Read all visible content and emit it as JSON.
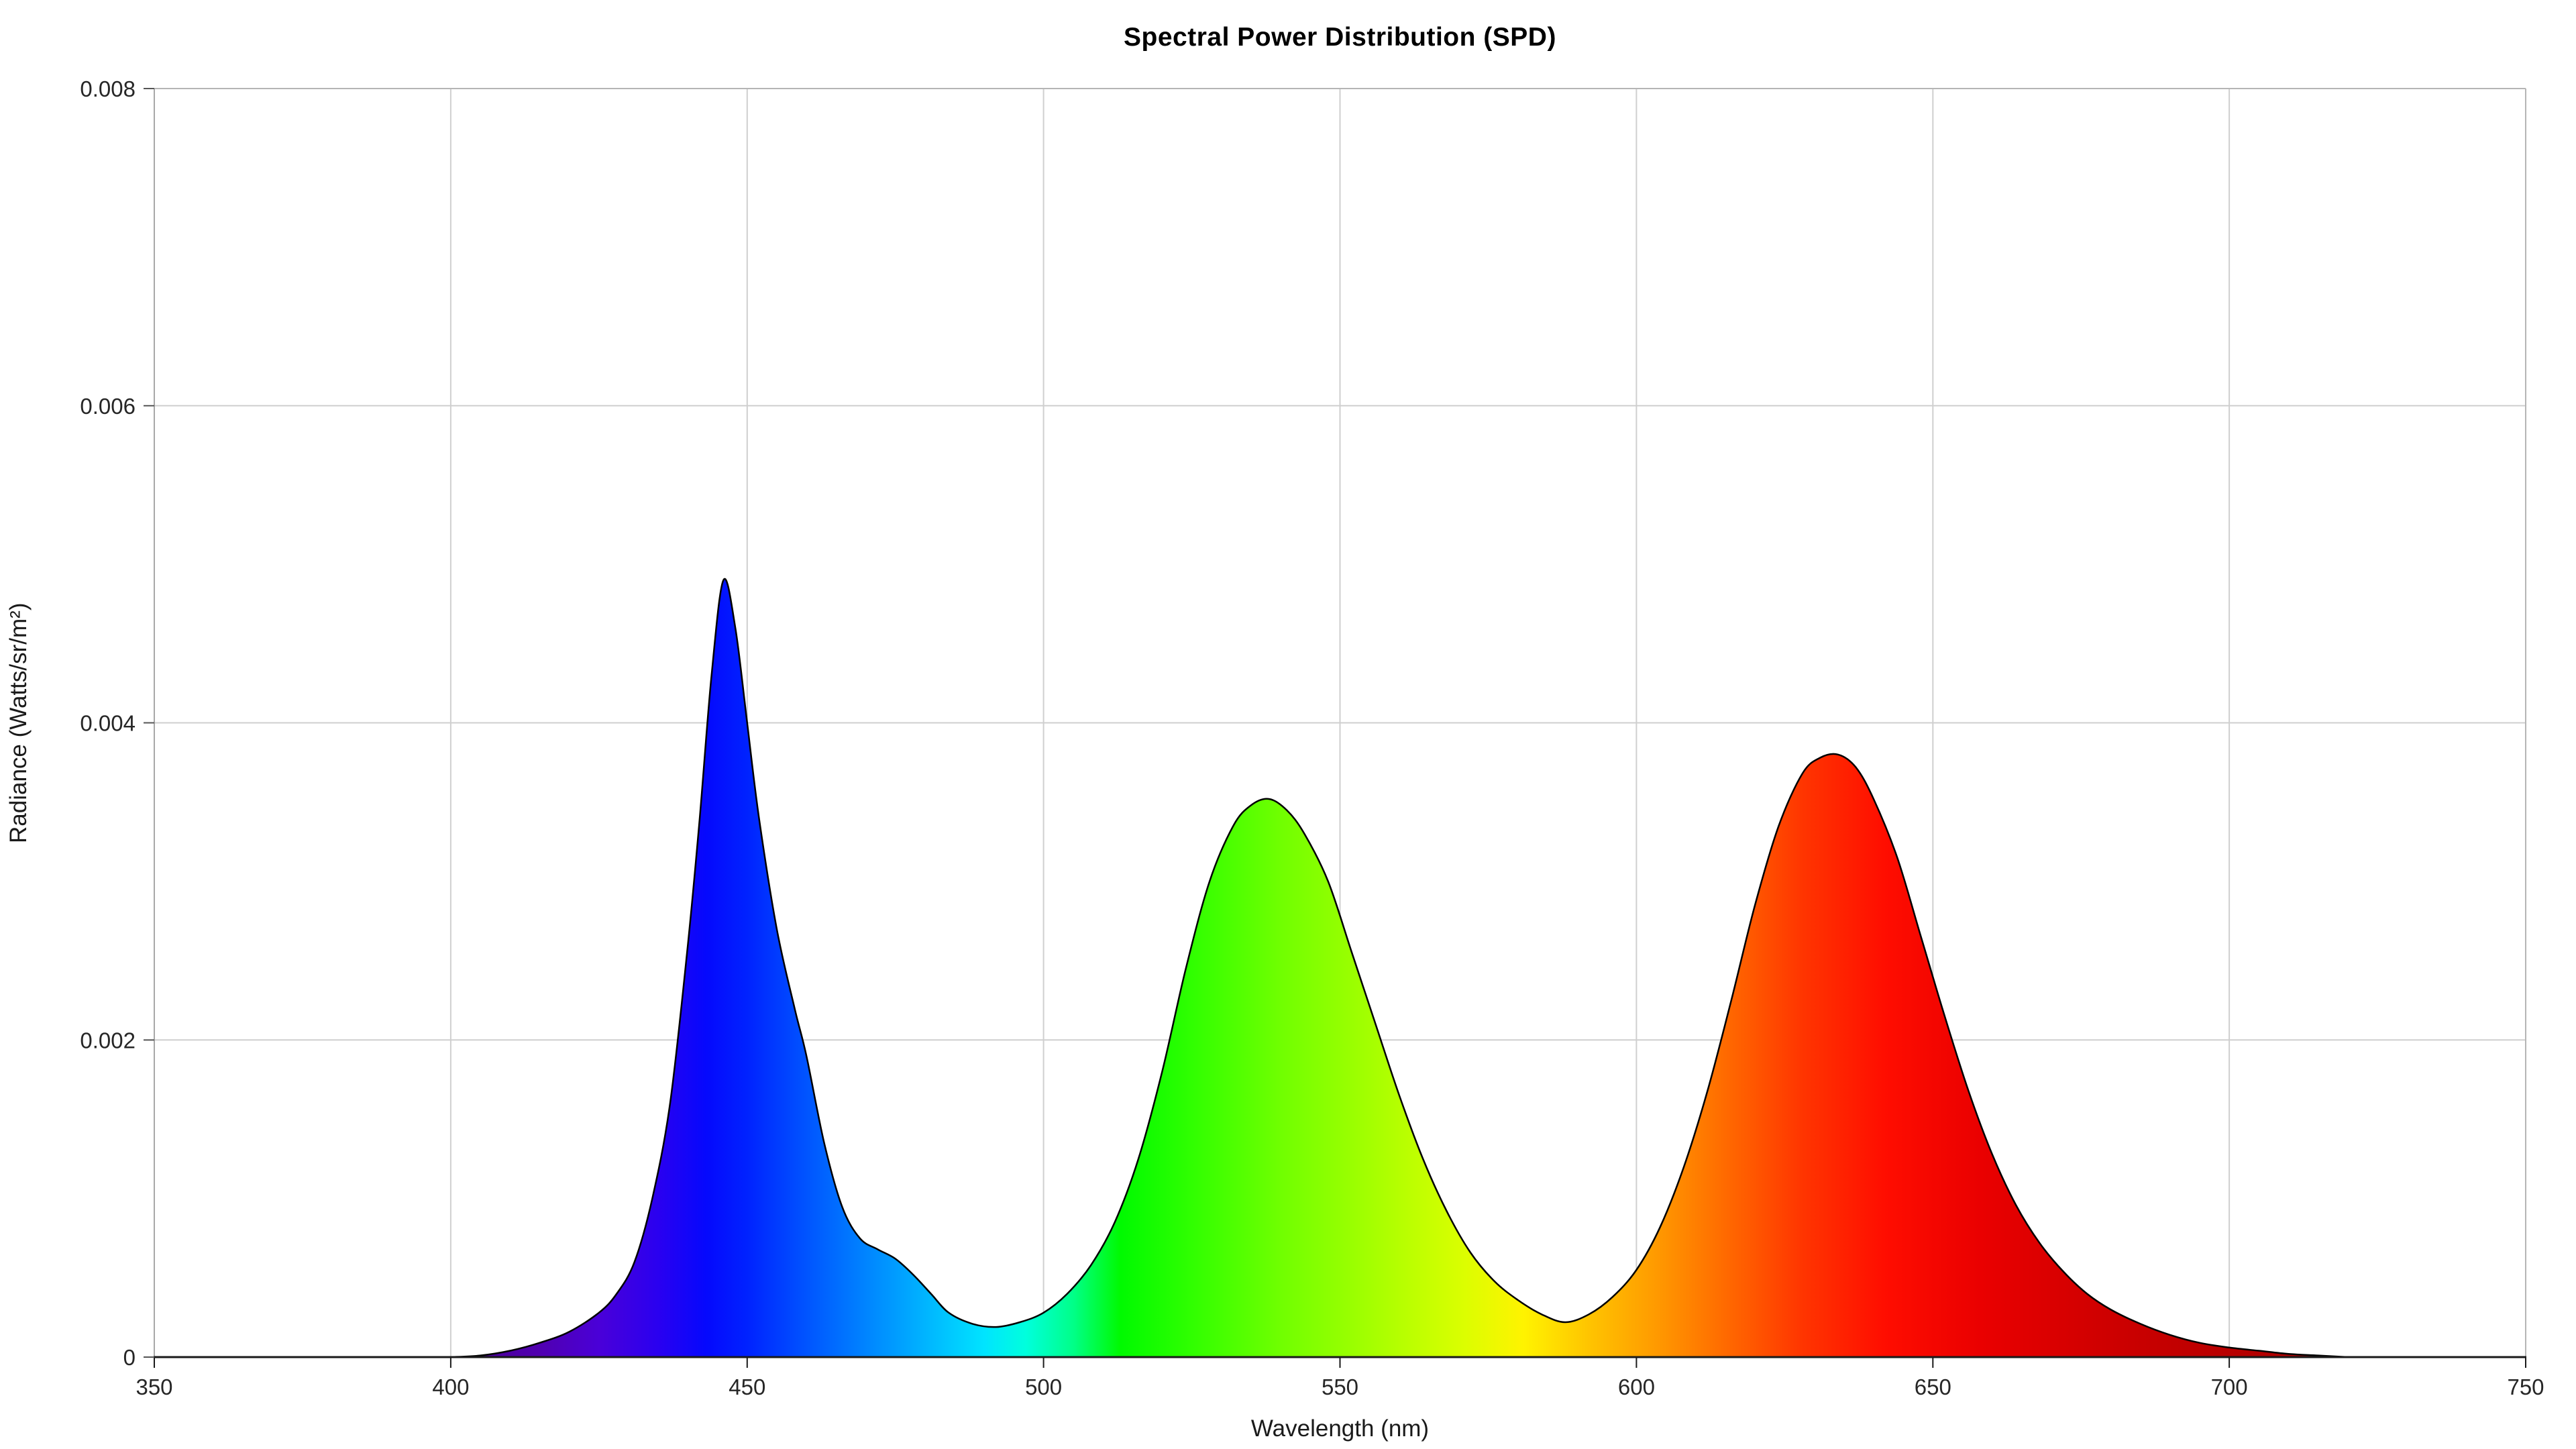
{
  "chart_data": {
    "type": "area",
    "title": "Spectral Power Distribution (SPD)",
    "xlabel": "Wavelength (nm)",
    "ylabel": "Radiance (Watts/sr/m²)",
    "xlim": [
      350,
      750
    ],
    "ylim": [
      0,
      0.008
    ],
    "xticks": [
      350,
      400,
      450,
      500,
      550,
      600,
      650,
      700,
      750
    ],
    "ytick_values": [
      0,
      0.002,
      0.004,
      0.006,
      0.008
    ],
    "ytick_labels": [
      "0",
      "0.002",
      "0.004",
      "0.006",
      "0.008"
    ],
    "grid": true,
    "legend_position": "none",
    "series_name": "Spectral radiance",
    "points": [
      [
        400,
        0
      ],
      [
        405,
        1e-05
      ],
      [
        410,
        4e-05
      ],
      [
        415,
        9e-05
      ],
      [
        420,
        0.00016
      ],
      [
        425,
        0.00028
      ],
      [
        428,
        0.0004
      ],
      [
        431,
        0.0006
      ],
      [
        434,
        0.001
      ],
      [
        437,
        0.0016
      ],
      [
        440,
        0.0026
      ],
      [
        442,
        0.0034
      ],
      [
        444,
        0.0043
      ],
      [
        446,
        0.0049
      ],
      [
        448,
        0.0046
      ],
      [
        450,
        0.004
      ],
      [
        452,
        0.0034
      ],
      [
        455,
        0.0027
      ],
      [
        458,
        0.0022
      ],
      [
        460,
        0.0019
      ],
      [
        463,
        0.00135
      ],
      [
        466,
        0.00095
      ],
      [
        469,
        0.00075
      ],
      [
        472,
        0.00068
      ],
      [
        475,
        0.00062
      ],
      [
        478,
        0.00052
      ],
      [
        481,
        0.0004
      ],
      [
        484,
        0.00028
      ],
      [
        488,
        0.00021
      ],
      [
        492,
        0.00019
      ],
      [
        496,
        0.00022
      ],
      [
        500,
        0.00028
      ],
      [
        504,
        0.0004
      ],
      [
        508,
        0.00058
      ],
      [
        512,
        0.00085
      ],
      [
        516,
        0.00125
      ],
      [
        520,
        0.0018
      ],
      [
        524,
        0.00245
      ],
      [
        528,
        0.003
      ],
      [
        532,
        0.00335
      ],
      [
        535,
        0.00348
      ],
      [
        538,
        0.00352
      ],
      [
        541,
        0.00345
      ],
      [
        544,
        0.0033
      ],
      [
        548,
        0.003
      ],
      [
        552,
        0.00255
      ],
      [
        556,
        0.0021
      ],
      [
        560,
        0.00165
      ],
      [
        564,
        0.00125
      ],
      [
        568,
        0.00092
      ],
      [
        572,
        0.00066
      ],
      [
        576,
        0.00048
      ],
      [
        580,
        0.00036
      ],
      [
        584,
        0.00027
      ],
      [
        588,
        0.00022
      ],
      [
        592,
        0.00027
      ],
      [
        596,
        0.00038
      ],
      [
        600,
        0.00055
      ],
      [
        604,
        0.00082
      ],
      [
        608,
        0.0012
      ],
      [
        612,
        0.00168
      ],
      [
        616,
        0.00225
      ],
      [
        620,
        0.00285
      ],
      [
        624,
        0.00335
      ],
      [
        628,
        0.00368
      ],
      [
        631,
        0.00378
      ],
      [
        634,
        0.0038
      ],
      [
        637,
        0.00372
      ],
      [
        640,
        0.00352
      ],
      [
        644,
        0.00315
      ],
      [
        648,
        0.00265
      ],
      [
        652,
        0.00215
      ],
      [
        656,
        0.00168
      ],
      [
        660,
        0.00128
      ],
      [
        664,
        0.00096
      ],
      [
        668,
        0.00072
      ],
      [
        672,
        0.00054
      ],
      [
        676,
        0.0004
      ],
      [
        680,
        0.0003
      ],
      [
        685,
        0.00021
      ],
      [
        690,
        0.00014
      ],
      [
        695,
        9e-05
      ],
      [
        700,
        6e-05
      ],
      [
        705,
        4e-05
      ],
      [
        710,
        2e-05
      ],
      [
        715,
        1e-05
      ],
      [
        720,
        0
      ]
    ],
    "gradient_stops": [
      {
        "nm": 400,
        "color": "#4a0090"
      },
      {
        "nm": 415,
        "color": "#5000b0"
      },
      {
        "nm": 425,
        "color": "#4a00d8"
      },
      {
        "nm": 435,
        "color": "#2a00f0"
      },
      {
        "nm": 443,
        "color": "#0508fd"
      },
      {
        "nm": 450,
        "color": "#0022ff"
      },
      {
        "nm": 460,
        "color": "#0054ff"
      },
      {
        "nm": 470,
        "color": "#0084ff"
      },
      {
        "nm": 480,
        "color": "#00b4ff"
      },
      {
        "nm": 490,
        "color": "#00e4ff"
      },
      {
        "nm": 497,
        "color": "#00ffdd"
      },
      {
        "nm": 505,
        "color": "#00ff88"
      },
      {
        "nm": 513,
        "color": "#00fa00"
      },
      {
        "nm": 525,
        "color": "#30ff00"
      },
      {
        "nm": 540,
        "color": "#70ff00"
      },
      {
        "nm": 555,
        "color": "#a4ff00"
      },
      {
        "nm": 570,
        "color": "#d8ff00"
      },
      {
        "nm": 581,
        "color": "#fff300"
      },
      {
        "nm": 592,
        "color": "#ffc400"
      },
      {
        "nm": 603,
        "color": "#ff9b00"
      },
      {
        "nm": 615,
        "color": "#ff6a00"
      },
      {
        "nm": 628,
        "color": "#ff3500"
      },
      {
        "nm": 642,
        "color": "#ff0d00"
      },
      {
        "nm": 658,
        "color": "#ea0000"
      },
      {
        "nm": 678,
        "color": "#d00000"
      },
      {
        "nm": 700,
        "color": "#b80000"
      },
      {
        "nm": 720,
        "color": "#a80000"
      }
    ],
    "colors": {
      "grid": "#cfcfcf",
      "box": "#b5b5b5",
      "left_axis": "#a8a8a8",
      "bottom_axis": "#1a1a1a",
      "tick_mark_x": "#1a1a1a",
      "tick_mark_y": "#555555",
      "tick_text": "#262626",
      "curve_outline": "#000000",
      "background": "#ffffff"
    }
  }
}
